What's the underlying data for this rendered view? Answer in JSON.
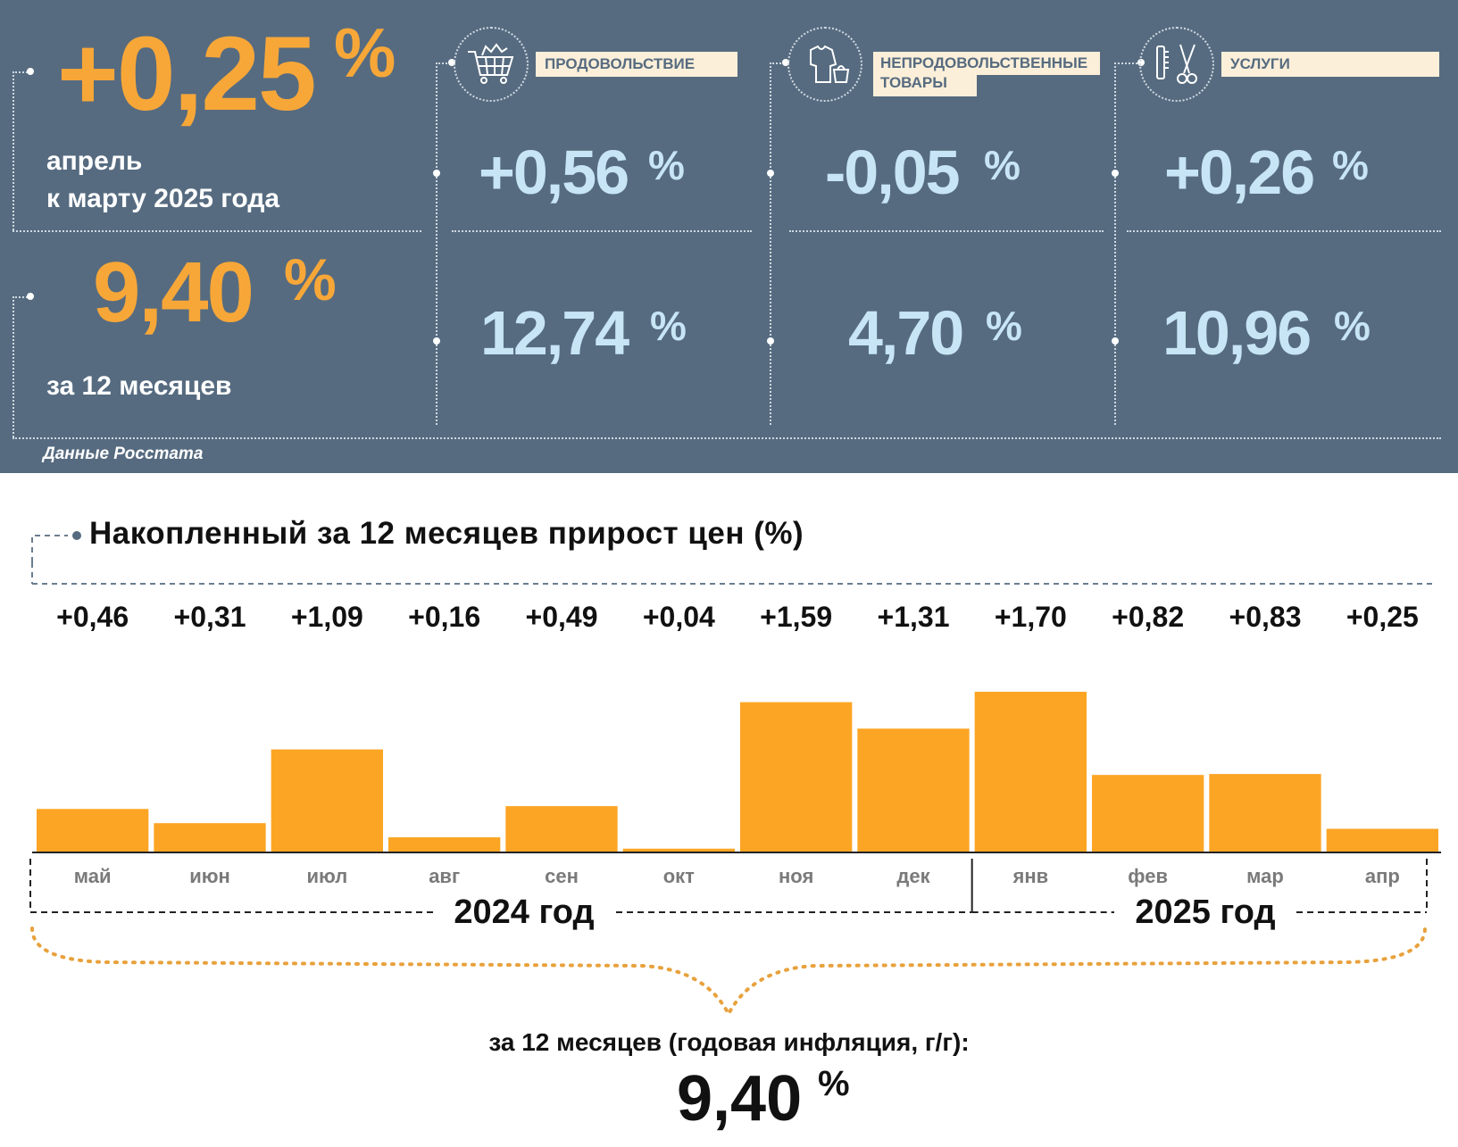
{
  "summary": {
    "monthly_value": "+0,25",
    "monthly_unit": "%",
    "monthly_label_1": "апрель",
    "monthly_label_2": "к марту 2025 года",
    "annual_value": "9,40",
    "annual_unit": "%",
    "annual_label": "за 12 месяцев",
    "source": "Данные Росстата"
  },
  "categories": [
    {
      "name": "ПРОДОВОЛЬСТВИЕ",
      "icon": "shopping-cart-icon",
      "monthly": "+0,56",
      "annual": "12,74",
      "unit": "%"
    },
    {
      "name_1": "НЕПРОДОВОЛЬСТВЕННЫЕ",
      "name_2": "ТОВАРЫ",
      "icon": "clothing-icon",
      "monthly": "-0,05",
      "annual": "4,70",
      "unit": "%"
    },
    {
      "name": "УСЛУГИ",
      "icon": "scissors-comb-icon",
      "monthly": "+0,26",
      "annual": "10,96",
      "unit": "%"
    }
  ],
  "colors": {
    "panel": "#566b80",
    "accent_orange": "#f7a738",
    "light_blue": "#c7e5f4",
    "bar": "#fca524"
  },
  "chart_title": "Накопленный за 12 месяцев прирост цен (%)",
  "chart_data": {
    "type": "bar",
    "title": "Накопленный за 12 месяцев прирост цен (%)",
    "categories": [
      "май",
      "июн",
      "июл",
      "авг",
      "сен",
      "окт",
      "ноя",
      "дек",
      "янв",
      "фев",
      "мар",
      "апр"
    ],
    "values": [
      0.46,
      0.31,
      1.09,
      0.16,
      0.49,
      0.04,
      1.59,
      1.31,
      1.7,
      0.82,
      0.83,
      0.25
    ],
    "value_labels": [
      "+0,46",
      "+0,31",
      "+1,09",
      "+0,16",
      "+0,49",
      "+0,04",
      "+1,59",
      "+1,31",
      "+1,70",
      "+0,82",
      "+0,83",
      "+0,25"
    ],
    "year_groups": [
      {
        "label": "2024 год",
        "months": [
          "май",
          "июн",
          "июл",
          "авг",
          "сен",
          "окт",
          "ноя",
          "дек"
        ]
      },
      {
        "label": "2025 год",
        "months": [
          "янв",
          "фев",
          "мар",
          "апр"
        ]
      }
    ],
    "grid": false
  },
  "footer": {
    "label": "за 12 месяцев (годовая инфляция, г/г):",
    "value": "9,40",
    "unit": "%"
  }
}
